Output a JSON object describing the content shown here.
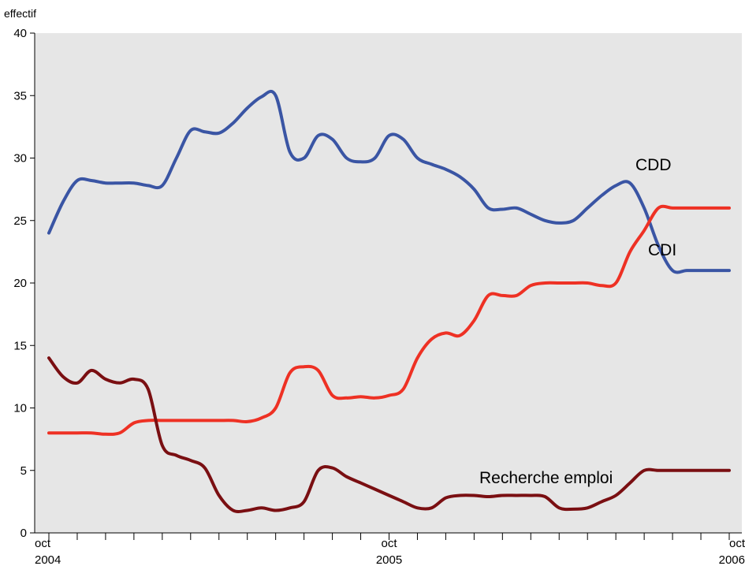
{
  "chart_data": {
    "type": "line",
    "title": "",
    "ylabel": "effectif",
    "xlabel": "",
    "ylim": [
      0,
      40
    ],
    "y_ticks": [
      0,
      5,
      10,
      15,
      20,
      25,
      30,
      35,
      40
    ],
    "x_range": [
      0,
      24
    ],
    "x_tick_positions": [
      0,
      1,
      2,
      3,
      4,
      5,
      6,
      7,
      8,
      9,
      10,
      11,
      12,
      13,
      14,
      15,
      16,
      17,
      18,
      19,
      20,
      21,
      22,
      23,
      24
    ],
    "x_labels": [
      {
        "x": 0,
        "month": "oct",
        "year": "2004"
      },
      {
        "x": 12,
        "month": "oct",
        "year": "2005"
      },
      {
        "x": 24,
        "month": "oct",
        "year": "2006"
      }
    ],
    "grid": false,
    "legend": "inline",
    "colors": {
      "plot_background": "#e6e6e6",
      "CDD": "#3a55a4",
      "CDI": "#ee3124",
      "Recherche emploi": "#7a0f12"
    },
    "series": [
      {
        "name": "CDD",
        "x": [
          0,
          0.5,
          1,
          1.5,
          2,
          2.5,
          3,
          3.5,
          4,
          4.5,
          5,
          5.5,
          6,
          6.5,
          7,
          7.5,
          8,
          8.5,
          9,
          9.5,
          10,
          10.5,
          11,
          11.5,
          12,
          12.5,
          13,
          13.5,
          14,
          14.5,
          15,
          15.5,
          16,
          16.5,
          17,
          17.5,
          18,
          18.5,
          19,
          19.5,
          20,
          20.5,
          21,
          21.5,
          22,
          22.5,
          23,
          23.5,
          24
        ],
        "values": [
          24,
          26.5,
          28.2,
          28.2,
          28,
          28,
          28,
          27.8,
          27.8,
          30,
          32.2,
          32.1,
          32,
          32.8,
          34,
          34.9,
          35,
          30.5,
          30,
          31.8,
          31.5,
          30,
          29.7,
          30,
          31.8,
          31.5,
          30,
          29.5,
          29.1,
          28.5,
          27.5,
          26,
          25.9,
          26,
          25.5,
          25,
          24.8,
          25,
          26,
          27,
          27.8,
          28,
          26,
          23,
          21,
          21,
          21,
          21,
          21
        ]
      },
      {
        "name": "CDI",
        "x": [
          0,
          0.5,
          1,
          1.5,
          2,
          2.5,
          3,
          3.5,
          4,
          4.5,
          5,
          5.5,
          6,
          6.5,
          7,
          7.5,
          8,
          8.5,
          9,
          9.5,
          10,
          10.5,
          11,
          11.5,
          12,
          12.5,
          13,
          13.5,
          14,
          14.5,
          15,
          15.5,
          16,
          16.5,
          17,
          17.5,
          18,
          18.5,
          19,
          19.5,
          20,
          20.5,
          21,
          21.5,
          22,
          22.5,
          23,
          23.5,
          24
        ],
        "values": [
          8,
          8,
          8,
          8,
          7.9,
          8,
          8.8,
          9,
          9,
          9,
          9,
          9,
          9,
          9,
          8.9,
          9.2,
          10,
          12.8,
          13.3,
          13,
          11,
          10.8,
          10.9,
          10.8,
          11,
          11.5,
          14,
          15.5,
          16,
          15.8,
          17,
          19,
          19,
          19,
          19.8,
          20,
          20,
          20,
          20,
          19.8,
          20,
          22.5,
          24.2,
          26,
          26,
          26,
          26,
          26,
          26
        ]
      },
      {
        "name": "Recherche emploi",
        "x": [
          0,
          0.5,
          1,
          1.5,
          2,
          2.5,
          3,
          3.5,
          4,
          4.5,
          5,
          5.5,
          6,
          6.5,
          7,
          7.5,
          8,
          8.5,
          9,
          9.5,
          10,
          10.5,
          11,
          11.5,
          12,
          12.5,
          13,
          13.5,
          14,
          14.5,
          15,
          15.5,
          16,
          16.5,
          17,
          17.5,
          18,
          18.5,
          19,
          19.5,
          20,
          20.5,
          21,
          21.5,
          22,
          22.5,
          23,
          23.5,
          24
        ],
        "values": [
          14,
          12.5,
          12,
          13,
          12.3,
          12,
          12.3,
          11.5,
          7,
          6.2,
          5.8,
          5.2,
          3,
          1.8,
          1.8,
          2,
          1.8,
          2,
          2.5,
          5,
          5.2,
          4.5,
          4,
          3.5,
          3,
          2.5,
          2,
          2,
          2.8,
          3,
          3,
          2.9,
          3,
          3,
          3,
          2.9,
          2,
          1.9,
          2,
          2.5,
          3,
          4,
          5,
          5,
          5,
          5,
          5,
          5,
          5
        ]
      }
    ],
    "annotations": [
      {
        "text": "CDD",
        "series": "CDD"
      },
      {
        "text": "CDI",
        "series": "CDI"
      },
      {
        "text": "Recherche emploi",
        "series": "Recherche emploi"
      }
    ]
  }
}
